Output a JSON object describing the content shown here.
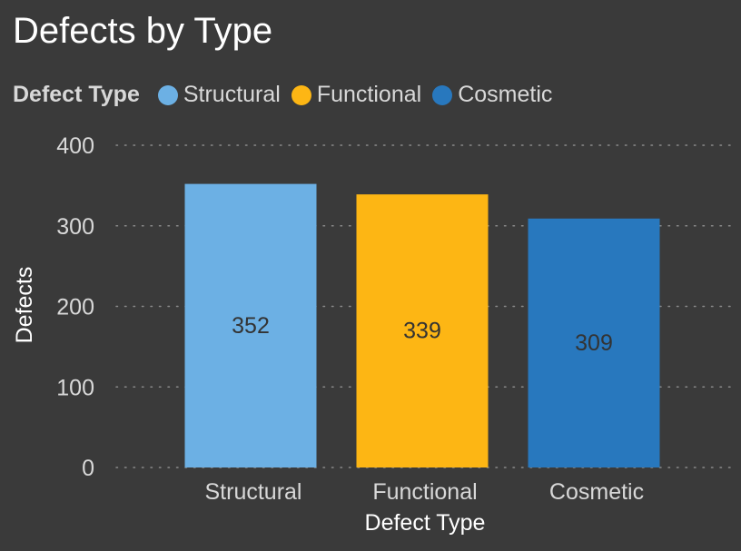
{
  "chart_data": {
    "type": "bar",
    "title": "Defects by Type",
    "legend_title": "Defect Type",
    "legend_position": "top-left",
    "categories": [
      "Structural",
      "Functional",
      "Cosmetic"
    ],
    "values": [
      352,
      339,
      309
    ],
    "data_labels": [
      "352",
      "339",
      "309"
    ],
    "colors": [
      "#6cb0e4",
      "#fdb614",
      "#2878be"
    ],
    "xlabel": "Defect Type",
    "ylabel": "Defects",
    "ylim": [
      0,
      400
    ],
    "yticks": [
      0,
      100,
      200,
      300,
      400
    ],
    "ytick_labels": [
      "0",
      "100",
      "200",
      "300",
      "400"
    ],
    "grid": true
  }
}
